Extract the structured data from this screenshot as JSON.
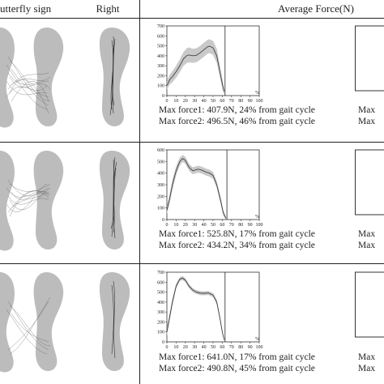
{
  "header": {
    "left_title": "utterfly sign",
    "right_title": "Right",
    "force_title": "Average Force(N)"
  },
  "chart_data": [
    {
      "type": "area",
      "title": "",
      "xlabel": "%",
      "ylabel": "",
      "xlim": [
        0,
        100
      ],
      "ylim": [
        0,
        700
      ],
      "xticks": [
        0,
        10,
        20,
        30,
        40,
        50,
        60,
        70,
        80,
        90,
        100
      ],
      "yticks": [
        0,
        100,
        200,
        300,
        400,
        500,
        600,
        700
      ],
      "cycle_end": 63,
      "series": [
        {
          "x": [
            0,
            3,
            6,
            10,
            14,
            18,
            22,
            24,
            28,
            32,
            36,
            40,
            44,
            46,
            50,
            54,
            57,
            60,
            62
          ],
          "mean": [
            100,
            160,
            190,
            240,
            300,
            370,
            405,
            408,
            400,
            405,
            430,
            460,
            490,
            497,
            480,
            400,
            260,
            120,
            40
          ],
          "sd": [
            40,
            50,
            55,
            60,
            65,
            70,
            75,
            75,
            70,
            70,
            70,
            70,
            70,
            70,
            70,
            70,
            60,
            50,
            30
          ]
        }
      ],
      "captions": [
        "Max force1: 407.9N, 24% from gait cycle",
        "Max force2: 496.5N, 46% from gait cycle"
      ],
      "right_captions": [
        "Max",
        "Max"
      ]
    },
    {
      "type": "area",
      "title": "",
      "xlabel": "%",
      "ylabel": "",
      "xlim": [
        0,
        100
      ],
      "ylim": [
        0,
        600
      ],
      "xticks": [
        0,
        10,
        20,
        30,
        40,
        50,
        60,
        70,
        80,
        90,
        100
      ],
      "yticks": [
        0,
        100,
        200,
        300,
        400,
        500,
        600
      ],
      "cycle_end": 65,
      "series": [
        {
          "x": [
            0,
            3,
            6,
            10,
            14,
            17,
            20,
            24,
            28,
            32,
            34,
            38,
            42,
            46,
            50,
            54,
            58,
            61,
            64
          ],
          "mean": [
            80,
            180,
            300,
            420,
            500,
            526,
            510,
            450,
            420,
            430,
            434,
            425,
            410,
            400,
            380,
            300,
            170,
            60,
            10
          ],
          "sd": [
            30,
            40,
            45,
            40,
            35,
            30,
            30,
            30,
            30,
            30,
            30,
            30,
            30,
            30,
            30,
            30,
            30,
            25,
            10
          ]
        }
      ],
      "captions": [
        "Max force1: 525.8N, 17% from gait cycle",
        "Max force2: 434.2N, 34% from gait cycle"
      ],
      "right_captions": [
        "Max",
        "Max"
      ]
    },
    {
      "type": "area",
      "title": "",
      "xlabel": "%",
      "ylabel": "",
      "xlim": [
        0,
        100
      ],
      "ylim": [
        0,
        700
      ],
      "xticks": [
        0,
        10,
        20,
        30,
        40,
        50,
        60,
        70,
        80,
        90,
        100
      ],
      "yticks": [
        0,
        100,
        200,
        300,
        400,
        500,
        600,
        700
      ],
      "cycle_end": 63,
      "series": [
        {
          "x": [
            0,
            3,
            6,
            10,
            14,
            17,
            20,
            24,
            28,
            32,
            36,
            40,
            45,
            50,
            54,
            57,
            60,
            62
          ],
          "mean": [
            100,
            250,
            400,
            560,
            630,
            641,
            620,
            560,
            520,
            500,
            490,
            488,
            491,
            470,
            400,
            260,
            100,
            20
          ],
          "sd": [
            40,
            40,
            35,
            25,
            20,
            20,
            20,
            20,
            20,
            20,
            20,
            20,
            20,
            20,
            25,
            25,
            20,
            10
          ]
        }
      ],
      "captions": [
        "Max force1: 641.0N, 17% from gait cycle",
        "Max force2: 490.8N, 45% from gait cycle"
      ],
      "right_captions": [
        "Max",
        "Max"
      ]
    }
  ]
}
